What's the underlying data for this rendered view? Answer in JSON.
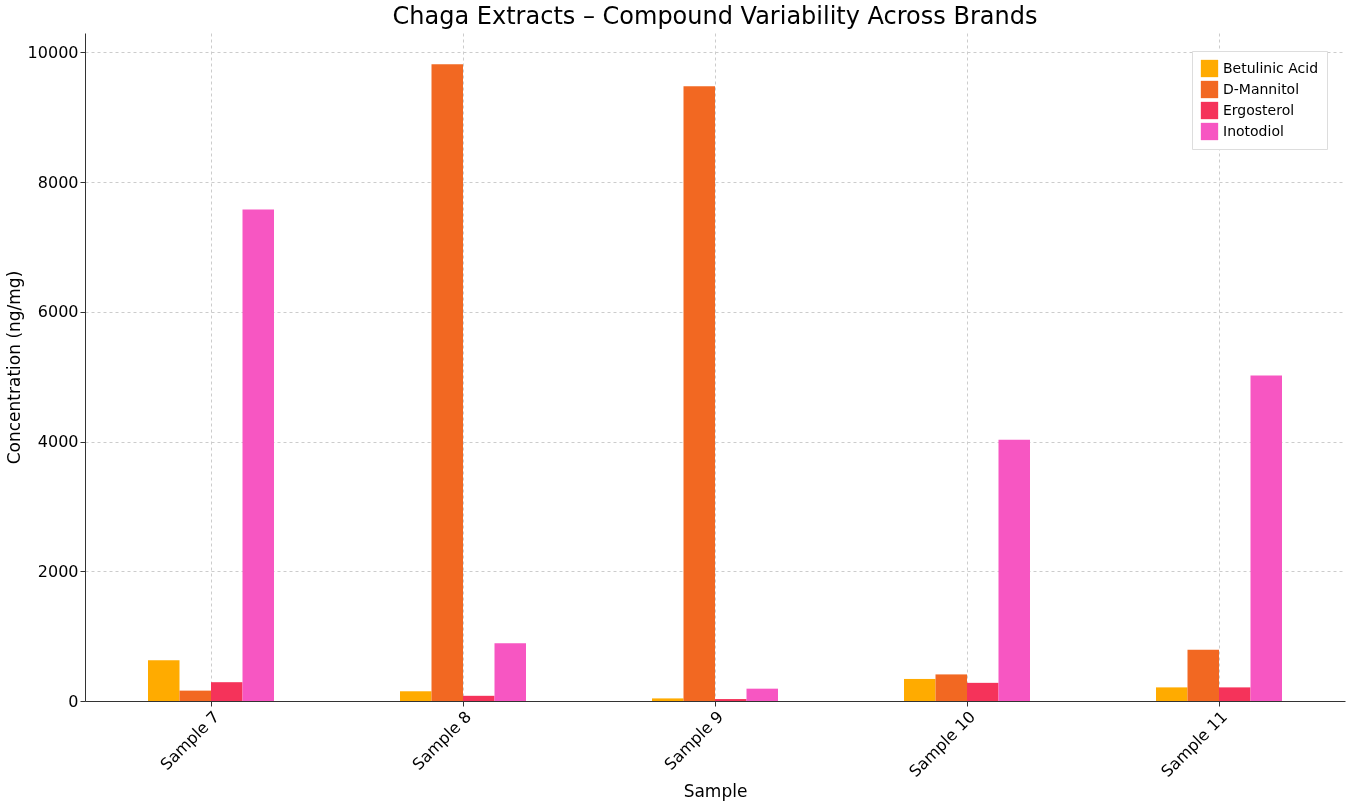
{
  "chart_data": {
    "type": "bar",
    "title": "Chaga Extracts – Compound Variability Across Brands",
    "xlabel": "Sample",
    "ylabel": "Concentration (ng/mg)",
    "categories": [
      "Sample 7",
      "Sample 8",
      "Sample 9",
      "Sample 10",
      "Sample 11"
    ],
    "series": [
      {
        "name": "Betulinic Acid",
        "color": "#ffab00",
        "values": [
          630,
          150,
          40,
          340,
          210
        ]
      },
      {
        "name": "D-Mannitol",
        "color": "#f26822",
        "values": [
          160,
          9820,
          9480,
          410,
          790
        ]
      },
      {
        "name": "Ergosterol",
        "color": "#f5335a",
        "values": [
          290,
          80,
          30,
          280,
          210
        ]
      },
      {
        "name": "Inotodiol",
        "color": "#f756c2",
        "values": [
          7580,
          890,
          190,
          4030,
          5020
        ]
      }
    ],
    "ylim": [
      0,
      10300
    ],
    "yticks": [
      0,
      2000,
      4000,
      6000,
      8000,
      10000
    ],
    "grid": true,
    "legend": "top right"
  }
}
